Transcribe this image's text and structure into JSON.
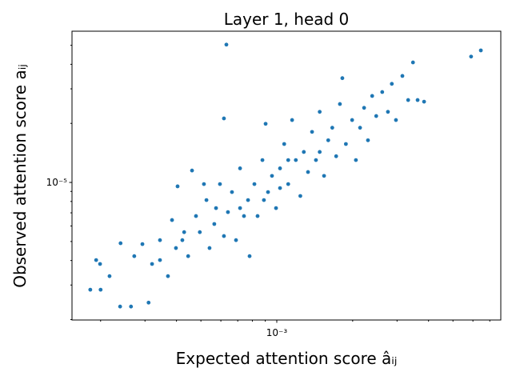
{
  "chart_data": {
    "type": "scatter",
    "title": "Layer 1, head 0",
    "xlabel": "Expected attention score âᵢⱼ",
    "ylabel": "Observed attention score aᵢⱼ",
    "xscale": "log",
    "yscale": "log",
    "xlim": [
      0.000154,
      0.00774
    ],
    "ylim": [
      1.99e-06,
      5.9e-05
    ],
    "xticks": [
      {
        "value": 0.001,
        "label": "10⁻³"
      }
    ],
    "yticks": [
      {
        "value": 1e-05,
        "label": "10⁻⁵"
      }
    ],
    "xminorticks": [
      0.0002,
      0.0003,
      0.0004,
      0.0005,
      0.0006,
      0.0007,
      0.0008,
      0.0009,
      0.002,
      0.003,
      0.004,
      0.005,
      0.006,
      0.007
    ],
    "yminorticks": [
      2e-06,
      3e-06,
      4e-06,
      5e-06,
      6e-06,
      7e-06,
      8e-06,
      9e-06,
      2e-05,
      3e-05,
      4e-05,
      5e-05
    ],
    "series": [
      {
        "color": "#1f77b4",
        "x": [
          0.000182,
          0.000192,
          0.000199,
          0.0002,
          0.000217,
          0.000239,
          0.00024,
          0.000264,
          0.000272,
          0.000293,
          0.00031,
          0.00032,
          0.000344,
          0.00037,
          0.000384,
          0.000404,
          0.000422,
          0.000445,
          0.000461,
          0.000478,
          0.000495,
          0.000526,
          0.000541,
          0.000565,
          0.000595,
          0.000617,
          0.000631,
          0.000617,
          0.00064,
          0.000664,
          0.000689,
          0.000715,
          0.000741,
          0.000769,
          0.00078,
          0.000815,
          0.000839,
          0.000877,
          0.000903,
          0.000923,
          0.000957,
          0.000993,
          0.00103,
          0.00107,
          0.00111,
          0.00115,
          0.00119,
          0.00124,
          0.00128,
          0.00133,
          0.00138,
          0.00143,
          0.00148,
          0.00154,
          0.0016,
          0.00166,
          0.00172,
          0.00178,
          0.00182,
          0.00188,
          0.00199,
          0.00206,
          0.00214,
          0.00222,
          0.0023,
          0.00239,
          0.00248,
          0.00262,
          0.00276,
          0.00286,
          0.00297,
          0.00315,
          0.00332,
          0.00347,
          0.00362,
          0.00384,
          0.0059,
          0.00645,
          0.000514,
          0.000715,
          0.000889,
          0.00111,
          0.00148,
          0.000574,
          0.00103,
          0.000429,
          0.000344,
          0.000398
        ],
        "y": [
          2.84e-06,
          4.02e-06,
          3.84e-06,
          2.84e-06,
          3.33e-06,
          2.33e-06,
          4.9e-06,
          2.33e-06,
          4.21e-06,
          4.85e-06,
          2.44e-06,
          3.84e-06,
          5.08e-06,
          3.33e-06,
          6.43e-06,
          9.55e-06,
          5.08e-06,
          4.21e-06,
          1.15e-05,
          6.74e-06,
          5.58e-06,
          8.13e-06,
          4.63e-06,
          6.14e-06,
          9.81e-06,
          5.33e-06,
          5.04e-05,
          2.12e-05,
          7.06e-06,
          8.93e-06,
          5.08e-06,
          1.18e-05,
          6.74e-06,
          8.13e-06,
          4.21e-06,
          9.81e-06,
          6.74e-06,
          1.3e-05,
          1.99e-05,
          8.93e-06,
          1.08e-05,
          7.4e-06,
          1.18e-05,
          1.57e-05,
          9.81e-06,
          2.08e-05,
          1.3e-05,
          8.53e-06,
          1.43e-05,
          1.13e-05,
          1.81e-05,
          1.3e-05,
          2.29e-05,
          1.08e-05,
          1.64e-05,
          1.9e-05,
          1.36e-05,
          2.51e-05,
          3.4e-05,
          1.57e-05,
          2.08e-05,
          1.3e-05,
          1.9e-05,
          2.4e-05,
          1.64e-05,
          2.76e-05,
          2.18e-05,
          2.89e-05,
          2.29e-05,
          3.18e-05,
          2.08e-05,
          3.49e-05,
          2.63e-05,
          4.09e-05,
          2.63e-05,
          2.58e-05,
          4.38e-05,
          4.71e-05,
          9.81e-06,
          7.4e-06,
          8.13e-06,
          1.3e-05,
          1.43e-05,
          7.4e-06,
          9.36e-06,
          5.58e-06,
          4.02e-06,
          4.63e-06
        ]
      }
    ]
  }
}
